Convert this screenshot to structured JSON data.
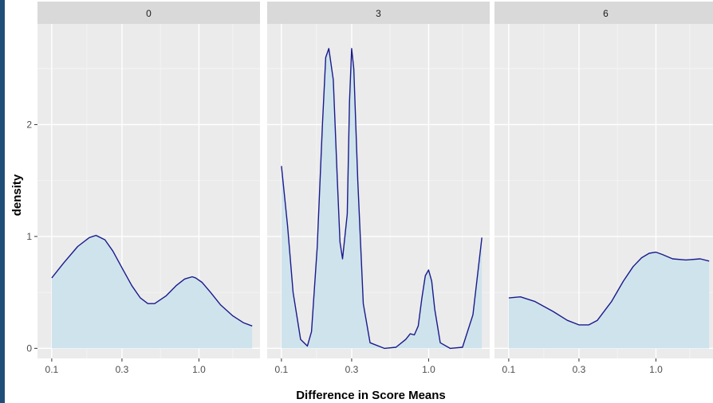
{
  "chart_data": {
    "type": "area",
    "subtype": "density",
    "facet_by": "panel",
    "xlabel": "Difference in Score Means",
    "ylabel": "density",
    "x_scale": "log10",
    "x_ticks": [
      0.1,
      0.3,
      1.0
    ],
    "x_tick_labels": [
      "0.1",
      "0.3",
      "1.0"
    ],
    "xlim": [
      0.08,
      2.6
    ],
    "y_ticks": [
      0,
      1,
      2
    ],
    "y_tick_labels": [
      "0",
      "1",
      "2"
    ],
    "ylim": [
      -0.09,
      2.9
    ],
    "grid": true,
    "fill_color": "#cfe3ec",
    "line_color": "#1a1a8c",
    "panel_bg": "#ebebeb",
    "strip_bg": "#d9d9d9",
    "panels": [
      {
        "label": "0",
        "x": [
          0.1,
          0.12,
          0.15,
          0.18,
          0.2,
          0.23,
          0.26,
          0.3,
          0.35,
          0.4,
          0.45,
          0.5,
          0.6,
          0.7,
          0.8,
          0.9,
          0.95,
          1.05,
          1.2,
          1.4,
          1.7,
          2.0,
          2.3
        ],
        "y": [
          0.63,
          0.76,
          0.91,
          0.99,
          1.01,
          0.97,
          0.87,
          0.72,
          0.56,
          0.45,
          0.4,
          0.4,
          0.47,
          0.56,
          0.62,
          0.64,
          0.63,
          0.59,
          0.5,
          0.39,
          0.29,
          0.23,
          0.2
        ]
      },
      {
        "label": "3",
        "x": [
          0.1,
          0.11,
          0.12,
          0.135,
          0.15,
          0.16,
          0.175,
          0.19,
          0.2,
          0.21,
          0.225,
          0.24,
          0.25,
          0.26,
          0.28,
          0.29,
          0.3,
          0.31,
          0.33,
          0.36,
          0.4,
          0.5,
          0.6,
          0.7,
          0.75,
          0.8,
          0.85,
          0.9,
          0.95,
          1.0,
          1.05,
          1.1,
          1.2,
          1.4,
          1.7,
          2.0,
          2.3
        ],
        "y": [
          1.63,
          1.1,
          0.5,
          0.08,
          0.02,
          0.15,
          0.9,
          2.0,
          2.6,
          2.68,
          2.4,
          1.5,
          0.95,
          0.8,
          1.2,
          2.2,
          2.68,
          2.5,
          1.5,
          0.4,
          0.05,
          0.0,
          0.01,
          0.08,
          0.13,
          0.12,
          0.2,
          0.45,
          0.65,
          0.7,
          0.6,
          0.35,
          0.05,
          0.0,
          0.01,
          0.3,
          0.99
        ]
      },
      {
        "label": "6",
        "x": [
          0.1,
          0.12,
          0.15,
          0.2,
          0.25,
          0.3,
          0.35,
          0.4,
          0.5,
          0.6,
          0.7,
          0.8,
          0.9,
          1.0,
          1.1,
          1.3,
          1.6,
          2.0,
          2.3
        ],
        "y": [
          0.45,
          0.46,
          0.42,
          0.33,
          0.25,
          0.21,
          0.21,
          0.25,
          0.42,
          0.6,
          0.73,
          0.81,
          0.85,
          0.86,
          0.84,
          0.8,
          0.79,
          0.8,
          0.78
        ]
      }
    ]
  }
}
